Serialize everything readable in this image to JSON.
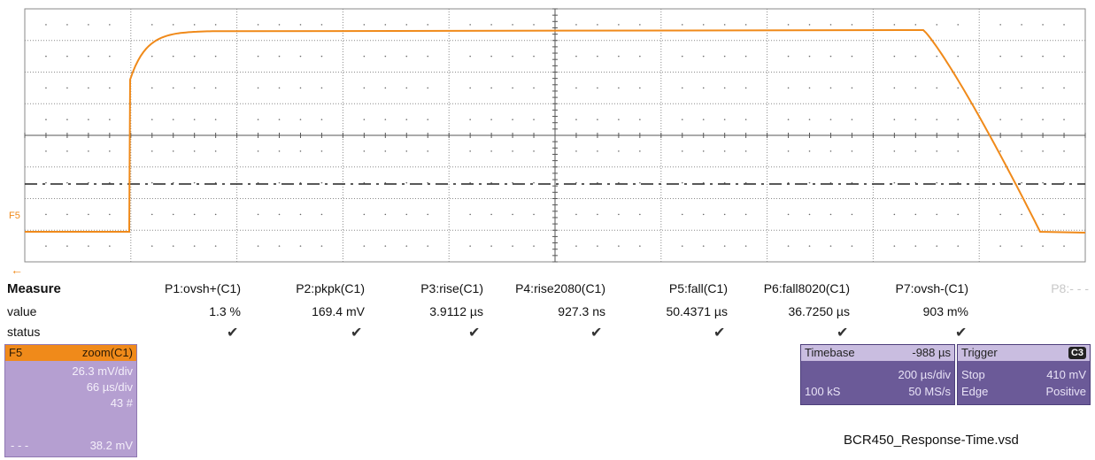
{
  "scope": {
    "trace_label": "F5",
    "offset_arrow": "←",
    "colors": {
      "trace": "#f08a1a",
      "grid": "#8a8a8a",
      "dots": "#666666",
      "threshold": "#222222"
    }
  },
  "measure": {
    "title": "Measure",
    "row_labels": [
      "value",
      "status"
    ],
    "columns": [
      {
        "name": "P1:ovsh+(C1)",
        "value": "1.3 %",
        "status": "✔"
      },
      {
        "name": "P2:pkpk(C1)",
        "value": "169.4 mV",
        "status": "✔"
      },
      {
        "name": "P3:rise(C1)",
        "value": "3.9112 µs",
        "status": "✔"
      },
      {
        "name": "P4:rise2080(C1)",
        "value": "927.3 ns",
        "status": "✔"
      },
      {
        "name": "P5:fall(C1)",
        "value": "50.4371 µs",
        "status": "✔"
      },
      {
        "name": "P6:fall8020(C1)",
        "value": "36.7250 µs",
        "status": "✔"
      },
      {
        "name": "P7:ovsh-(C1)",
        "value": "903 m%",
        "status": "✔"
      },
      {
        "name": "P8:- - -",
        "value": "",
        "status": ""
      }
    ]
  },
  "f5_panel": {
    "label": "F5",
    "source": "zoom(C1)",
    "vdiv": "26.3 mV/div",
    "hdiv": "66 µs/div",
    "sweeps": "43 #",
    "footer_left": "- - -",
    "footer_right": "38.2 mV"
  },
  "timebase": {
    "title": "Timebase",
    "delay": "-988 µs",
    "per_div": "200 µs/div",
    "samples": "100 kS",
    "rate": "50 MS/s"
  },
  "trigger": {
    "title": "Trigger",
    "channel": "C3",
    "mode": "Stop",
    "level": "410 mV",
    "type": "Edge",
    "slope": "Positive"
  },
  "filename": "BCR450_Response-Time.vsd"
}
